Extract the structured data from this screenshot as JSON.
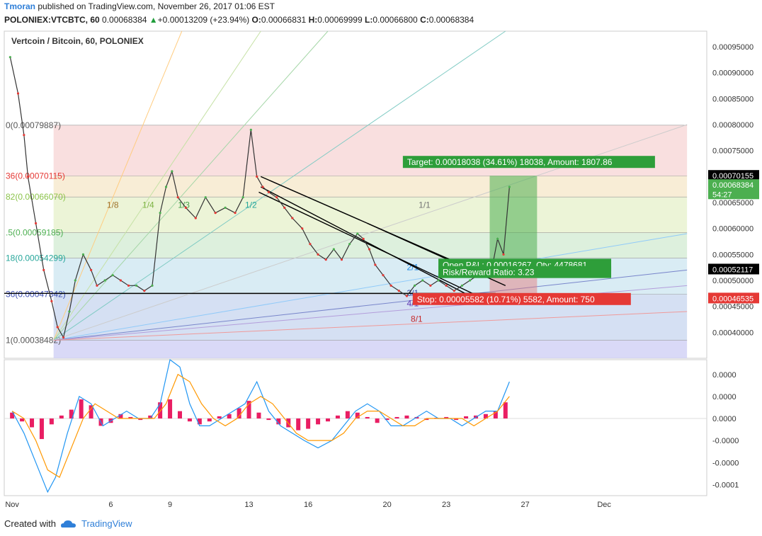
{
  "header": {
    "author": "Tmoran",
    "published_text": "published on TradingView.com, November 26, 2017 01:06 EST",
    "symbol": "POLONIEX:VTCBTC, 60",
    "last": "0.00068384",
    "change_arrow": "▲",
    "change": "+0.00013209 (+23.94%)",
    "o_label": "O:",
    "o": "0.00066831",
    "h_label": "H:",
    "h": "0.00069999",
    "l_label": "L:",
    "l": "0.00066800",
    "c_label": "C:",
    "c": "0.00068384"
  },
  "chart_data": {
    "type": "line",
    "title": "Vertcoin / Bitcoin, 60, POLONIEX",
    "ylim": [
      0.00035,
      0.00098
    ],
    "price_ticks": [
      "0.00095000",
      "0.00090000",
      "0.00085000",
      "0.00080000",
      "0.00075000",
      "0.00070000",
      "0.00065000",
      "0.00060000",
      "0.00055000",
      "0.00050000",
      "0.00045000",
      "0.00040000"
    ],
    "price_tick_values": [
      0.00095,
      0.0009,
      0.00085,
      0.0008,
      0.00075,
      0.0007,
      0.00065,
      0.0006,
      0.00055,
      0.0005,
      0.00045,
      0.0004
    ],
    "x_ticks": [
      "Nov",
      "6",
      "9",
      "13",
      "16",
      "20",
      "23",
      "27",
      "Dec"
    ],
    "x_tick_days": [
      1,
      6,
      9,
      13,
      16,
      20,
      23,
      27,
      31
    ],
    "xlim": [
      0.6,
      36.2
    ],
    "close_series": {
      "x": [
        0.9,
        1.3,
        1.6,
        1.8,
        2.2,
        2.6,
        3.0,
        3.3,
        3.6,
        3.9,
        4.2,
        4.6,
        5.0,
        5.3,
        5.7,
        6.1,
        6.5,
        6.9,
        7.3,
        7.7,
        8.1,
        8.5,
        8.8,
        9.1,
        9.4,
        9.8,
        10.3,
        10.8,
        11.3,
        11.8,
        12.3,
        12.7,
        13.1,
        13.4,
        13.7,
        14.0,
        14.4,
        14.8,
        15.2,
        15.7,
        16.1,
        16.5,
        16.9,
        17.3,
        17.7,
        18.1,
        18.5,
        18.8,
        19.1,
        19.4,
        19.8,
        20.2,
        20.6,
        21.0,
        21.4,
        21.8,
        22.2,
        22.6,
        23.0,
        23.4,
        23.8,
        24.2,
        24.6,
        25.0,
        25.3,
        25.6,
        25.9,
        26.2
      ],
      "y": [
        0.00093,
        0.00086,
        0.00078,
        0.0007,
        0.00061,
        0.00052,
        0.00046,
        0.00041,
        0.00039,
        0.00044,
        0.0005,
        0.00055,
        0.00052,
        0.00049,
        0.0005,
        0.00051,
        0.0005,
        0.00049,
        0.00049,
        0.00048,
        0.00049,
        0.00063,
        0.00068,
        0.00071,
        0.00066,
        0.00064,
        0.00062,
        0.00066,
        0.00063,
        0.00064,
        0.00063,
        0.00066,
        0.00079,
        0.0007,
        0.00068,
        0.00067,
        0.00066,
        0.00064,
        0.00062,
        0.0006,
        0.00057,
        0.00055,
        0.00054,
        0.00056,
        0.00054,
        0.00057,
        0.00059,
        0.00058,
        0.00056,
        0.00053,
        0.00051,
        0.00049,
        0.00048,
        0.00047,
        0.00049,
        0.0005,
        0.00049,
        0.0005,
        0.00049,
        0.00048,
        0.00049,
        0.0005,
        0.00051,
        0.00052,
        0.00052,
        0.00058,
        0.00055,
        0.00068
      ]
    },
    "fib_labels": [
      "0(0.00079887)",
      "36(0.00070115)",
      "82(0.00066070)",
      ".5(0.00059185)",
      "18(0.00054299)",
      "36(0.00047342)",
      "1(0.00038482)"
    ],
    "fib_values": [
      0.00079887,
      0.00070115,
      0.0006607,
      0.00059185,
      0.00054299,
      0.00047342,
      0.00038482
    ],
    "fan_labels": [
      "1/8",
      "1/4",
      "1/3",
      "1/2",
      "1/1",
      "2/1",
      "3/1",
      "4/1",
      "8/1"
    ],
    "position_labels": {
      "target": "Target: 0.00018038 (34.61%) 18038, Amount: 1807.86",
      "open_pl": "Open P&L: 0.00016267, Qty: 4478681",
      "rr": "Risk/Reward Ratio: 3.23",
      "stop": "Stop: 0.00005582 (10.71%) 5582, Amount: 750"
    },
    "price_badges": [
      {
        "text": "0.00070155",
        "value": 0.00070155,
        "color": "#000000"
      },
      {
        "text": "0.00068384",
        "value": 0.00068384,
        "color": "#4caf50"
      },
      {
        "text": "54:27",
        "value": 0.000666,
        "color": "#4caf50"
      },
      {
        "text": "0.00052117",
        "value": 0.00052117,
        "color": "#000000"
      },
      {
        "text": "0.00046535",
        "value": 0.00046535,
        "color": "#e53935"
      }
    ],
    "macd_ticks": [
      "0.0000",
      "0.0000",
      "0.0000",
      "-0.0000",
      "-0.0000",
      "-0.0001"
    ],
    "macd_tick_values": [
      6e-05,
      3e-05,
      0.0,
      -3e-05,
      -6e-05,
      -9e-05
    ],
    "macd_ylim": [
      -0.000105,
      8e-05
    ],
    "macd_hist": {
      "x": [
        1.0,
        1.5,
        2.0,
        2.5,
        3.0,
        3.5,
        4.0,
        4.5,
        5.0,
        5.5,
        6.0,
        6.5,
        7.0,
        7.5,
        8.0,
        8.5,
        9.0,
        9.5,
        10.0,
        10.5,
        11.0,
        11.5,
        12.0,
        12.5,
        13.0,
        13.5,
        14.0,
        14.5,
        15.0,
        15.5,
        16.0,
        16.5,
        17.0,
        17.5,
        18.0,
        18.5,
        19.0,
        19.5,
        20.0,
        20.5,
        21.0,
        21.5,
        22.0,
        22.5,
        23.0,
        23.5,
        24.0,
        24.5,
        25.0,
        25.5,
        26.0
      ],
      "v": [
        8e-06,
        -4e-06,
        -1.2e-05,
        -2.8e-05,
        -8e-06,
        4e-06,
        1.2e-05,
        2.6e-05,
        1.8e-05,
        -1e-05,
        -6e-06,
        6e-06,
        2e-06,
        -2e-06,
        4e-06,
        2.2e-05,
        2.6e-05,
        1e-05,
        -4e-06,
        -8e-06,
        -4e-06,
        3e-06,
        6e-06,
        1.4e-05,
        2.4e-05,
        8e-06,
        -2e-06,
        -8e-06,
        -1.2e-05,
        -1.6e-05,
        -1.4e-05,
        -8e-06,
        -4e-06,
        4e-06,
        1e-05,
        8e-06,
        2e-06,
        -6e-06,
        -2e-06,
        2e-06,
        4e-06,
        2e-06,
        -2e-06,
        1e-06,
        2e-06,
        -2e-06,
        3e-06,
        4e-06,
        6e-06,
        1e-05,
        2.2e-05
      ]
    },
    "macd_line": {
      "x": [
        1.0,
        1.6,
        2.2,
        2.8,
        3.2,
        3.8,
        4.4,
        5.0,
        5.6,
        6.2,
        6.8,
        7.4,
        8.0,
        8.5,
        9.0,
        9.5,
        10.0,
        10.5,
        11.0,
        11.6,
        12.2,
        12.8,
        13.4,
        14.0,
        14.6,
        15.2,
        15.8,
        16.5,
        17.2,
        17.8,
        18.4,
        19.0,
        19.6,
        20.2,
        20.8,
        21.4,
        22.0,
        22.6,
        23.2,
        23.8,
        24.4,
        25.0,
        25.6,
        26.2
      ],
      "y": [
        1e-05,
        -2e-05,
        -6e-05,
        -0.0001,
        -8e-05,
        -2e-05,
        3e-05,
        2e-05,
        -1e-05,
        0.0,
        1e-05,
        0.0,
        0.0,
        2e-05,
        8e-05,
        7e-05,
        2e-05,
        -1e-05,
        -1e-05,
        0.0,
        1e-05,
        2e-05,
        5e-05,
        1e-05,
        -1e-05,
        -2e-05,
        -3e-05,
        -4e-05,
        -3e-05,
        -1e-05,
        1e-05,
        2e-05,
        1e-05,
        -1e-05,
        -1e-05,
        0.0,
        1e-05,
        0.0,
        0.0,
        -1e-05,
        0.0,
        1e-05,
        1e-05,
        5e-05
      ]
    },
    "signal_line": {
      "x": [
        1.0,
        1.6,
        2.2,
        2.8,
        3.4,
        4.0,
        4.6,
        5.2,
        5.8,
        6.4,
        7.0,
        7.6,
        8.2,
        8.8,
        9.4,
        10.0,
        10.6,
        11.2,
        11.8,
        12.4,
        13.0,
        13.6,
        14.2,
        14.8,
        15.4,
        16.0,
        16.6,
        17.2,
        17.8,
        18.4,
        19.0,
        19.6,
        20.2,
        20.8,
        21.4,
        22.0,
        22.6,
        23.2,
        23.8,
        24.4,
        25.0,
        25.6,
        26.2
      ],
      "y": [
        1e-05,
        0.0,
        -3e-05,
        -7e-05,
        -8e-05,
        -4e-05,
        0.0,
        2e-05,
        1e-05,
        0.0,
        0.0,
        0.0,
        0.0,
        2e-05,
        6e-05,
        5e-05,
        2e-05,
        0.0,
        -1e-05,
        0.0,
        2e-05,
        3e-05,
        2e-05,
        0.0,
        -2e-05,
        -3e-05,
        -3e-05,
        -3e-05,
        -2e-05,
        0.0,
        1e-05,
        1e-05,
        0.0,
        -1e-05,
        -1e-05,
        0.0,
        0.0,
        0.0,
        0.0,
        -1e-05,
        0.0,
        1e-05,
        3e-05
      ]
    },
    "colors": {
      "up": "#4caf50",
      "down": "#e53935",
      "macd": "#2196f3",
      "signal": "#ff9800",
      "hist": "#e91e63",
      "fib_top": "#f4c6c6",
      "grid": "#e0e0e0"
    }
  },
  "footer": {
    "created_with": "Created with",
    "brand": "TradingView"
  }
}
